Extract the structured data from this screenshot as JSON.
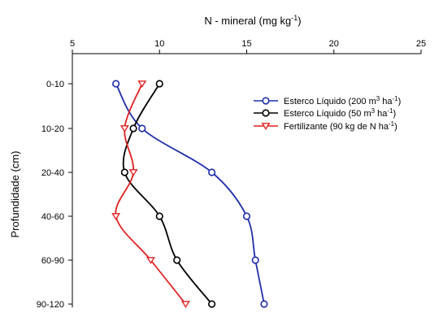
{
  "chart_data": {
    "type": "line",
    "orientation": "vertical-profile",
    "x_axis_position": "top",
    "xlabel": "N - mineral (mg kg-1)",
    "xlabel_main": "N - mineral (mg kg",
    "xlabel_sup": "-1",
    "xlabel_close": ")",
    "ylabel": "Profundidade (cm)",
    "xlim": [
      5,
      25
    ],
    "xticks": [
      5,
      10,
      15,
      20,
      25
    ],
    "categories": [
      "0-10",
      "10-20",
      "20-40",
      "40-60",
      "60-90",
      "90-120"
    ],
    "series": [
      {
        "name": "Esterco Líquido (200 m3 ha-1)",
        "legend_main": "Esterco Líquido (200 m",
        "legend_sup1": "3",
        "legend_mid": " ha",
        "legend_sup2": "-1",
        "legend_end": ")",
        "color": "#1f2fa8",
        "marker": "circle",
        "values": [
          7.5,
          9.0,
          13.0,
          15.0,
          15.5,
          16.0
        ]
      },
      {
        "name": "Esterco Líquido (50 m3 ha-1)",
        "legend_main": "Esterco Líquido (50 m",
        "legend_sup1": "3",
        "legend_mid": " ha",
        "legend_sup2": "-1",
        "legend_end": ")",
        "color": "#000000",
        "marker": "circle",
        "values": [
          10.0,
          8.5,
          8.0,
          10.0,
          11.0,
          13.0
        ]
      },
      {
        "name": "Fertilizante (90 kg de N ha-1)",
        "legend_main": "Fertilizante (90 kg de N ha",
        "legend_sup1": "",
        "legend_mid": "",
        "legend_sup2": "-1",
        "legend_end": ")",
        "color": "#e02020",
        "marker": "triangle-down",
        "values": [
          9.0,
          8.0,
          8.5,
          7.5,
          9.5,
          11.5
        ]
      }
    ],
    "legend_position": "top-right",
    "grid": false
  }
}
